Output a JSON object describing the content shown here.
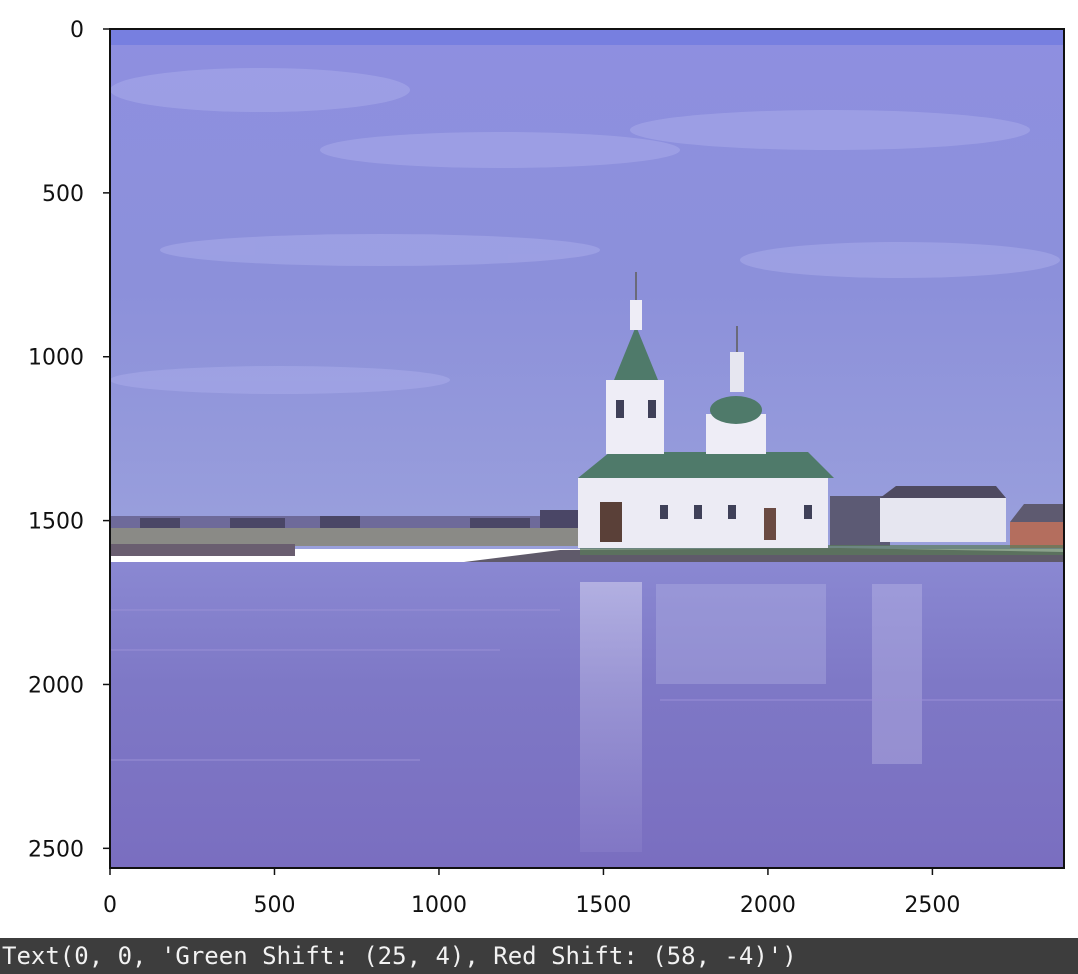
{
  "chart_data": {
    "type": "image",
    "xlim": [
      0,
      2900
    ],
    "ylim": [
      2560,
      0
    ],
    "x_ticks": [
      0,
      500,
      1000,
      1500,
      2000,
      2500
    ],
    "y_ticks": [
      0,
      500,
      1000,
      1500,
      2000,
      2500
    ],
    "x_tick_labels": [
      "0",
      "500",
      "1000",
      "1500",
      "2000",
      "2500"
    ],
    "y_tick_labels": [
      "0",
      "500",
      "1000",
      "1500",
      "2000",
      "2500"
    ]
  },
  "output": {
    "text": "Text(0, 0, 'Green Shift: (25, 4), Red Shift: (58, -4)')"
  },
  "colors": {
    "sky": "#8a8fdc",
    "water": "#7d78c8",
    "church": "#e8e8f2",
    "roof": "#4f7a6a",
    "output_bg": "#3d3d3d"
  }
}
